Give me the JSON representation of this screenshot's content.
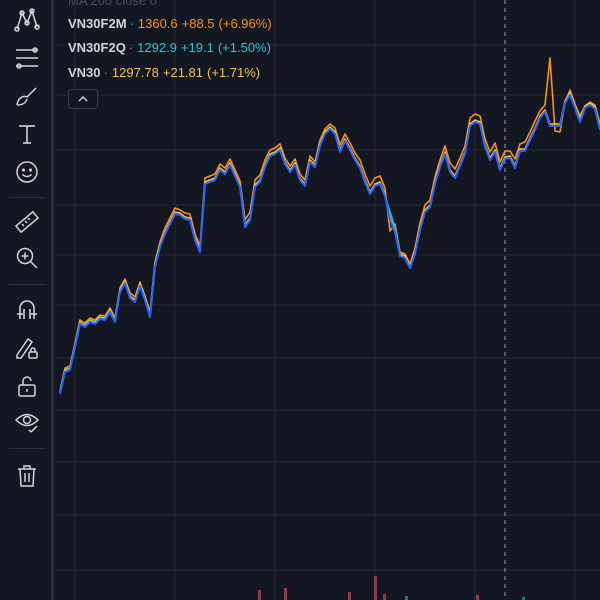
{
  "colors": {
    "background": "#131722",
    "grid": "#242733",
    "icon": "#d1d4dc",
    "vn30f2m": "#f7931a",
    "vn30f2q": "#26c6da",
    "vn30": "#f5c443",
    "main_line": "#2962ff",
    "volume_red": "#8e3b4a",
    "volume_green": "#1b7d6a"
  },
  "toolbar": {
    "tools": [
      {
        "name": "pattern-tool-icon"
      },
      {
        "name": "fib-retracement-icon"
      },
      {
        "name": "brush-icon"
      },
      {
        "name": "text-tool-icon"
      },
      {
        "name": "emoji-icon"
      },
      {
        "name": "ruler-icon"
      },
      {
        "name": "zoom-in-icon"
      },
      {
        "name": "magnet-icon"
      },
      {
        "name": "stay-in-drawing-mode-icon"
      },
      {
        "name": "lock-drawings-icon"
      },
      {
        "name": "hide-drawings-icon"
      },
      {
        "name": "trash-icon"
      }
    ]
  },
  "legend": {
    "ma_label": "MA 200 close 0",
    "rows": [
      {
        "symbol": "VN30F2M",
        "last": "1360.6",
        "change": "+88.5",
        "pct": "(+6.96%)",
        "color": "#f7931a"
      },
      {
        "symbol": "VN30F2Q",
        "last": "1292.9",
        "change": "+19.1",
        "pct": "(+1.50%)",
        "color": "#26c6da"
      },
      {
        "symbol": "VN30",
        "last": "1297.78",
        "change": "+21.81",
        "pct": "(+1.71%)",
        "color": "#f5c443"
      }
    ],
    "separator": "·"
  },
  "chart_data": {
    "type": "line",
    "x": [
      0,
      1,
      2,
      3,
      4,
      5,
      6,
      7,
      8,
      9,
      10,
      11,
      12,
      13,
      14,
      15,
      16,
      17,
      18,
      19,
      20,
      21,
      22,
      23,
      24,
      25,
      26,
      27,
      28,
      29,
      30,
      31,
      32,
      33,
      34,
      35,
      36,
      37,
      38,
      39,
      40,
      41,
      42,
      43,
      44,
      45,
      46,
      47,
      48,
      49,
      50,
      51,
      52,
      53,
      54,
      55,
      56,
      57,
      58,
      59,
      60,
      61,
      62,
      63,
      64,
      65,
      66,
      67,
      68,
      69,
      70,
      71,
      72,
      73,
      74,
      75,
      76,
      77,
      78,
      79,
      80,
      81,
      82,
      83,
      84,
      85,
      86,
      87,
      88,
      89,
      90,
      91,
      92,
      93,
      94,
      95,
      96,
      97,
      98,
      99,
      100,
      101,
      102,
      103,
      104,
      105,
      106,
      107,
      108
    ],
    "series": [
      {
        "name": "VN30",
        "values": [
          392,
          370,
          368,
          345,
          322,
          325,
          320,
          322,
          317,
          318,
          310,
          320,
          290,
          281,
          296,
          300,
          284,
          298,
          315,
          265,
          245,
          232,
          222,
          212,
          213,
          217,
          218,
          238,
          250,
          182,
          180,
          178,
          168,
          172,
          163,
          174,
          185,
          225,
          218,
          185,
          180,
          165,
          154,
          152,
          148,
          162,
          170,
          163,
          178,
          184,
          160,
          165,
          144,
          132,
          127,
          132,
          150,
          139,
          148,
          158,
          166,
          180,
          192,
          184,
          182,
          194,
          218,
          230,
          254,
          256,
          266,
          252,
          228,
          210,
          205,
          182,
          165,
          152,
          170,
          176,
          164,
          152,
          124,
          120,
          122,
          145,
          158,
          150,
          168,
          157,
          156,
          166,
          149,
          149,
          138,
          128,
          116,
          110,
          124,
          124,
          124,
          101,
          93,
          106,
          120,
          106,
          103,
          107,
          128
        ]
      },
      {
        "name": "VN30F2M",
        "values": [
          391,
          368,
          366,
          343,
          320,
          323,
          318,
          320,
          315,
          316,
          308,
          318,
          288,
          279,
          293,
          297,
          282,
          296,
          312,
          262,
          242,
          228,
          218,
          208,
          210,
          213,
          214,
          234,
          246,
          178,
          176,
          174,
          164,
          168,
          159,
          170,
          181,
          220,
          212,
          180,
          175,
          160,
          150,
          148,
          144,
          158,
          166,
          159,
          174,
          180,
          156,
          162,
          140,
          129,
          124,
          128,
          145,
          134,
          143,
          153,
          160,
          174,
          186,
          178,
          176,
          188,
          231,
          224,
          252,
          254,
          264,
          248,
          223,
          205,
          200,
          177,
          160,
          146,
          163,
          169,
          158,
          146,
          118,
          114,
          116,
          139,
          152,
          143,
          162,
          151,
          151,
          159,
          144,
          142,
          132,
          121,
          111,
          105,
          58,
          131,
          132,
          102,
          90,
          104,
          116,
          106,
          102,
          105,
          124
        ]
      },
      {
        "name": "VN30F2Q",
        "values": [
          393,
          371,
          369,
          346,
          323,
          326,
          321,
          323,
          318,
          319,
          311,
          321,
          291,
          283,
          298,
          302,
          286,
          300,
          317,
          267,
          247,
          234,
          224,
          214,
          215,
          219,
          220,
          240,
          252,
          184,
          182,
          180,
          170,
          174,
          165,
          176,
          187,
          227,
          220,
          187,
          182,
          167,
          156,
          154,
          150,
          164,
          172,
          165,
          180,
          186,
          162,
          167,
          146,
          134,
          129,
          134,
          152,
          141,
          150,
          160,
          168,
          182,
          194,
          186,
          184,
          196,
          212,
          228,
          256,
          258,
          268,
          254,
          230,
          212,
          207,
          184,
          167,
          154,
          172,
          178,
          166,
          154,
          126,
          122,
          124,
          147,
          160,
          152,
          170,
          159,
          158,
          168,
          151,
          151,
          140,
          130,
          118,
          112,
          126,
          126,
          126,
          103,
          95,
          108,
          122,
          108,
          105,
          109,
          130
        ]
      }
    ],
    "volume_bars": [
      {
        "x": 259,
        "value": 10,
        "color": "#8e3b4a"
      },
      {
        "x": 285,
        "value": 12,
        "color": "#8e3b4a"
      },
      {
        "x": 349,
        "value": 8,
        "color": "#8e3b4a"
      },
      {
        "x": 375,
        "value": 24,
        "color": "#8e3b4a"
      },
      {
        "x": 384,
        "value": 6,
        "color": "#8e3b4a"
      },
      {
        "x": 406,
        "value": 4,
        "color": "#1b7d6a"
      },
      {
        "x": 477,
        "value": 5,
        "color": "#8e3b4a"
      },
      {
        "x": 523,
        "value": 3,
        "color": "#1b7d6a"
      }
    ],
    "crosshair": true,
    "grid": true
  }
}
